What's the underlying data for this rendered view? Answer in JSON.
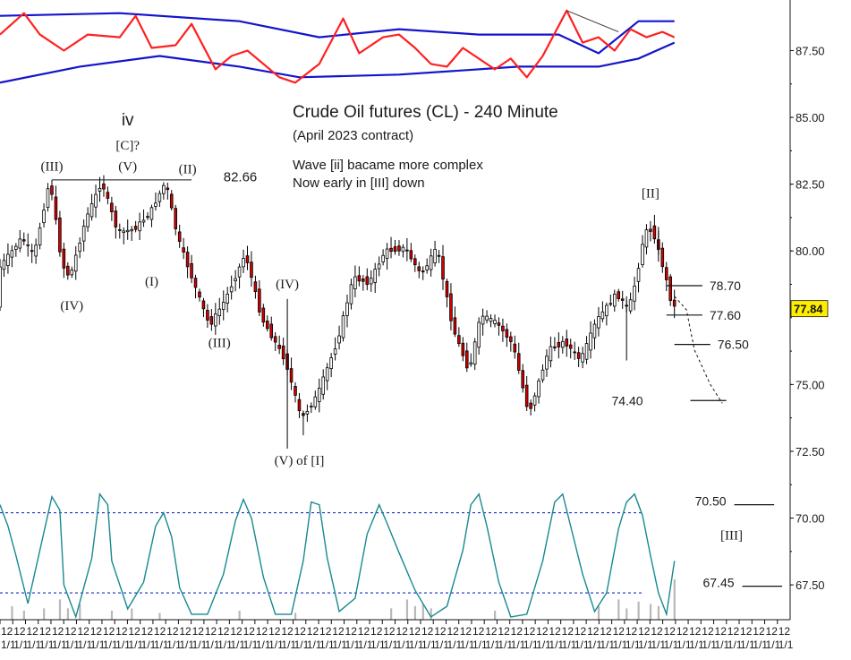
{
  "chart_data": {
    "type": "candlestick",
    "title": "Crude Oil futures (CL) - 240 Minute",
    "subtitle": "(April 2023 contract)",
    "notes": [
      "Wave [ii] bacame more complex",
      "Now early in [III] down"
    ],
    "y_axis": {
      "ticks": [
        "87.50",
        "85.00",
        "82.50",
        "80.00",
        "75.00",
        "72.50",
        "70.00",
        "67.50"
      ],
      "ylim": [
        66.2,
        88.5
      ],
      "last_price": "77.84"
    },
    "x_axis": {
      "tick_label_top": "12",
      "tick_label_bottom": "1/1",
      "count": 62
    },
    "price_path": [
      [
        0,
        79.3
      ],
      [
        6,
        80.5
      ],
      [
        9,
        79.8
      ],
      [
        13,
        82.7
      ],
      [
        16,
        79.5
      ],
      [
        18,
        79.0
      ],
      [
        22,
        81.2
      ],
      [
        26,
        82.6
      ],
      [
        30,
        80.7
      ],
      [
        34,
        80.8
      ],
      [
        38,
        81.4
      ],
      [
        42,
        82.6
      ],
      [
        45,
        80.5
      ],
      [
        50,
        78.4
      ],
      [
        53,
        77.2
      ],
      [
        57,
        78.2
      ],
      [
        62,
        79.9
      ],
      [
        66,
        77.5
      ],
      [
        72,
        75.9
      ],
      [
        76,
        73.7
      ],
      [
        80,
        74.6
      ],
      [
        85,
        76.6
      ],
      [
        89,
        79.0
      ],
      [
        93,
        78.8
      ],
      [
        97,
        80.0
      ],
      [
        102,
        80.1
      ],
      [
        106,
        79.1
      ],
      [
        110,
        80.1
      ],
      [
        114,
        77.1
      ],
      [
        118,
        75.5
      ],
      [
        121,
        77.6
      ],
      [
        125,
        77.3
      ],
      [
        129,
        76.5
      ],
      [
        133,
        73.9
      ],
      [
        138,
        76.3
      ],
      [
        142,
        76.6
      ],
      [
        146,
        75.9
      ],
      [
        150,
        77.4
      ],
      [
        155,
        78.4
      ],
      [
        158,
        77.8
      ],
      [
        160,
        79.0
      ],
      [
        162,
        80.7
      ],
      [
        164,
        80.8
      ],
      [
        167,
        79.2
      ],
      [
        169,
        77.9
      ]
    ],
    "top_indicator": {
      "band_upper": [
        [
          0,
          88.8
        ],
        [
          30,
          88.9
        ],
        [
          60,
          88.6
        ],
        [
          80,
          88.0
        ],
        [
          100,
          88.3
        ],
        [
          120,
          88.1
        ],
        [
          140,
          88.1
        ],
        [
          150,
          87.4
        ],
        [
          160,
          88.6
        ],
        [
          169,
          88.6
        ]
      ],
      "band_lower": [
        [
          0,
          86.3
        ],
        [
          20,
          86.9
        ],
        [
          40,
          87.3
        ],
        [
          60,
          86.9
        ],
        [
          75,
          86.5
        ],
        [
          100,
          86.6
        ],
        [
          130,
          86.9
        ],
        [
          150,
          86.9
        ],
        [
          160,
          87.2
        ],
        [
          169,
          87.8
        ]
      ],
      "oscillator": [
        [
          0,
          88.1
        ],
        [
          6,
          88.9
        ],
        [
          10,
          88.1
        ],
        [
          16,
          87.5
        ],
        [
          22,
          88.1
        ],
        [
          30,
          88.0
        ],
        [
          34,
          88.8
        ],
        [
          38,
          87.6
        ],
        [
          44,
          87.7
        ],
        [
          48,
          88.5
        ],
        [
          54,
          86.8
        ],
        [
          58,
          87.3
        ],
        [
          62,
          87.5
        ],
        [
          70,
          86.5
        ],
        [
          74,
          86.3
        ],
        [
          80,
          87.0
        ],
        [
          86,
          88.7
        ],
        [
          90,
          87.4
        ],
        [
          96,
          88.0
        ],
        [
          100,
          88.1
        ],
        [
          104,
          87.6
        ],
        [
          108,
          87.0
        ],
        [
          112,
          86.9
        ],
        [
          116,
          87.6
        ],
        [
          124,
          86.8
        ],
        [
          128,
          87.2
        ],
        [
          132,
          86.5
        ],
        [
          136,
          87.3
        ],
        [
          142,
          89.0
        ],
        [
          146,
          87.8
        ],
        [
          150,
          88.0
        ],
        [
          154,
          87.5
        ],
        [
          158,
          88.3
        ],
        [
          162,
          88.0
        ],
        [
          166,
          88.2
        ],
        [
          169,
          88.0
        ]
      ],
      "trendline": [
        [
          142,
          89.0
        ],
        [
          155,
          88.2
        ]
      ]
    },
    "bottom_indicator": {
      "band_upper": 70.2,
      "band_lower": 67.2,
      "oscillator": [
        [
          0,
          70.5
        ],
        [
          2,
          69.7
        ],
        [
          4,
          68.6
        ],
        [
          7,
          66.8
        ],
        [
          10,
          68.8
        ],
        [
          13,
          70.8
        ],
        [
          15,
          70.3
        ],
        [
          16,
          67.5
        ],
        [
          19,
          66.3
        ],
        [
          23,
          68.5
        ],
        [
          25,
          70.9
        ],
        [
          27,
          70.5
        ],
        [
          28,
          68.4
        ],
        [
          32,
          66.6
        ],
        [
          36,
          67.6
        ],
        [
          39,
          69.7
        ],
        [
          41,
          70.2
        ],
        [
          43,
          69.3
        ],
        [
          45,
          67.4
        ],
        [
          48,
          66.4
        ],
        [
          52,
          66.4
        ],
        [
          56,
          67.9
        ],
        [
          59,
          69.9
        ],
        [
          61,
          70.7
        ],
        [
          63,
          70.0
        ],
        [
          66,
          67.8
        ],
        [
          69,
          66.4
        ],
        [
          73,
          66.4
        ],
        [
          76,
          68.4
        ],
        [
          78,
          70.6
        ],
        [
          80,
          70.5
        ],
        [
          82,
          68.5
        ],
        [
          85,
          66.5
        ],
        [
          89,
          67.0
        ],
        [
          92,
          69.4
        ],
        [
          95,
          70.5
        ],
        [
          97,
          69.8
        ],
        [
          100,
          68.7
        ],
        [
          104,
          67.3
        ],
        [
          108,
          66.3
        ],
        [
          112,
          66.7
        ],
        [
          116,
          68.8
        ],
        [
          118,
          70.5
        ],
        [
          120,
          70.9
        ],
        [
          122,
          69.7
        ],
        [
          125,
          67.6
        ],
        [
          128,
          66.3
        ],
        [
          132,
          66.4
        ],
        [
          136,
          68.4
        ],
        [
          139,
          70.6
        ],
        [
          141,
          70.9
        ],
        [
          143,
          69.7
        ],
        [
          146,
          67.9
        ],
        [
          149,
          66.5
        ],
        [
          152,
          67.2
        ],
        [
          155,
          69.6
        ],
        [
          157,
          70.6
        ],
        [
          159,
          70.9
        ],
        [
          161,
          70.1
        ],
        [
          163,
          68.6
        ],
        [
          165,
          67.2
        ],
        [
          167,
          66.4
        ],
        [
          169,
          68.4
        ]
      ],
      "volume": [
        [
          3,
          0.6
        ],
        [
          6,
          0.4
        ],
        [
          11,
          0.5
        ],
        [
          15,
          0.9
        ],
        [
          17,
          0.5
        ],
        [
          20,
          0.7
        ],
        [
          28,
          0.4
        ],
        [
          33,
          0.5
        ],
        [
          40,
          0.3
        ],
        [
          60,
          0.4
        ],
        [
          74,
          0.3
        ],
        [
          98,
          0.5
        ],
        [
          102,
          0.9
        ],
        [
          104,
          0.6
        ],
        [
          106,
          0.7
        ],
        [
          108,
          0.5
        ],
        [
          124,
          0.4
        ],
        [
          150,
          0.6
        ],
        [
          155,
          0.9
        ],
        [
          157,
          0.5
        ],
        [
          160,
          0.8
        ],
        [
          163,
          0.7
        ],
        [
          165,
          0.6
        ],
        [
          169,
          1.8
        ]
      ]
    },
    "annotations": [
      {
        "text": "iv",
        "x": 32,
        "y": 84.7,
        "style": "plain"
      },
      {
        "text": "[C]?",
        "x": 32,
        "y": 83.8,
        "style": "serif"
      },
      {
        "text": "(III)",
        "x": 13,
        "y": 83.0,
        "style": "serif"
      },
      {
        "text": "(V)",
        "x": 32,
        "y": 83.0,
        "style": "serif"
      },
      {
        "text": "(II)",
        "x": 47,
        "y": 82.9,
        "style": "serif"
      },
      {
        "text": "82.66",
        "x": 56,
        "y": 82.6,
        "style": "plain"
      },
      {
        "text": "(IV)",
        "x": 18,
        "y": 77.8,
        "style": "serif"
      },
      {
        "text": "(I)",
        "x": 38,
        "y": 78.7,
        "style": "serif"
      },
      {
        "text": "(III)",
        "x": 55,
        "y": 76.4,
        "style": "serif"
      },
      {
        "text": "(IV)",
        "x": 72,
        "y": 78.6,
        "style": "serif"
      },
      {
        "text": "(V) of [I]",
        "x": 75,
        "y": 72.0,
        "style": "serif"
      },
      {
        "text": "[II]",
        "x": 163,
        "y": 82.0,
        "style": "serif"
      }
    ],
    "target_levels": [
      {
        "label": "78.70",
        "value": 78.7,
        "x1": 167,
        "x2": 176
      },
      {
        "label": "77.60",
        "value": 77.6,
        "x1": 167,
        "x2": 176
      },
      {
        "label": "76.50",
        "value": 76.5,
        "x1": 169,
        "x2": 178
      },
      {
        "label": "74.40",
        "value": 74.4,
        "x1": 173,
        "x2": 182
      },
      {
        "label": "70.50",
        "value": 70.5,
        "x1": 184,
        "x2": 194
      },
      {
        "label": "67.45",
        "value": 67.45,
        "x1": 186,
        "x2": 196
      }
    ],
    "projection": [
      [
        169,
        78.3
      ],
      [
        172,
        77.8
      ],
      [
        174,
        76.3
      ],
      [
        178,
        75.0
      ],
      [
        181,
        74.3
      ]
    ],
    "projection_label": "[III]",
    "colors": {
      "up_candle": "#ffffff",
      "down_candle": "#d40000",
      "wick": "#000000",
      "band": "#1414cc",
      "top_oscillator": "#ff2020",
      "bottom_oscillator": "#17898f",
      "bottom_band": "#1a2bd6",
      "volume": "#b8b8b8",
      "last_price_badge": "#ffee00"
    }
  }
}
